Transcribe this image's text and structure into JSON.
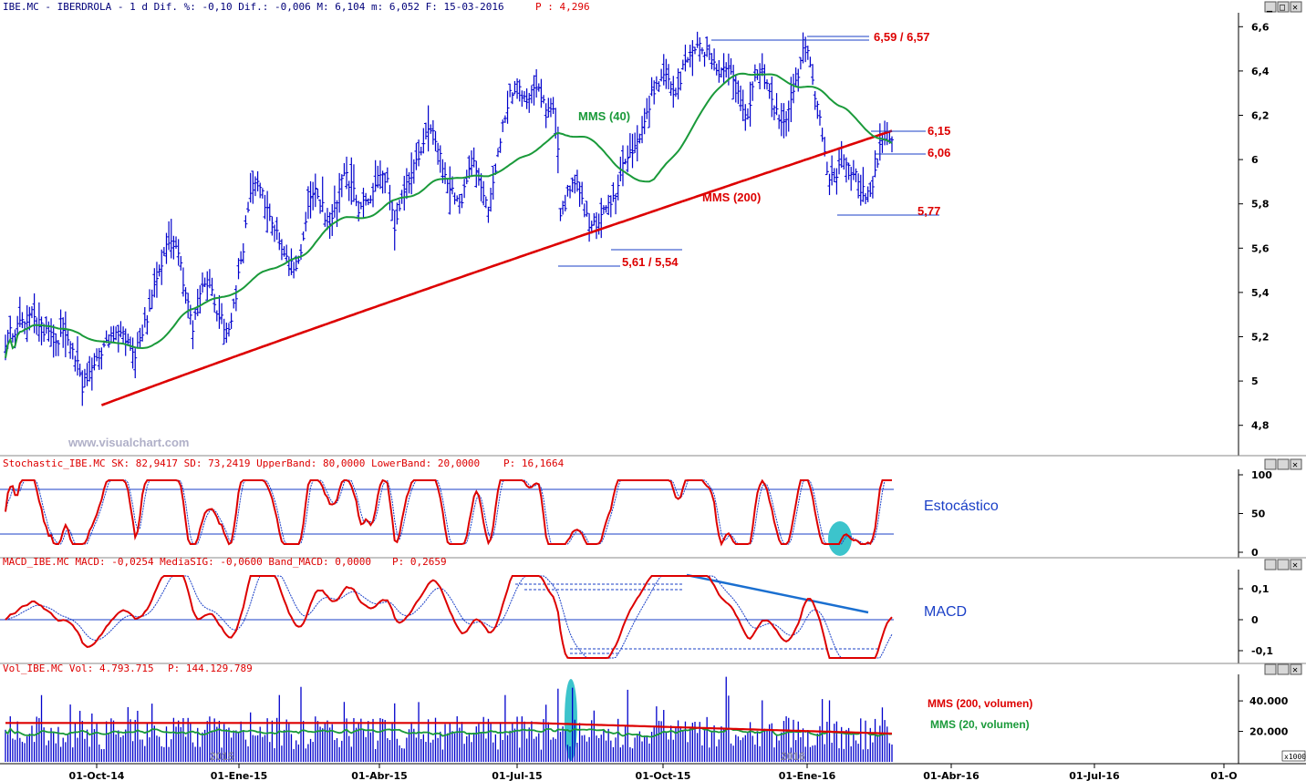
{
  "panels": {
    "price": {
      "header": "IBE.MC - IBERDROLA -  1 d Dif. %: -0,10 Dif.: -0,006 M: 6,104 m: 6,052 F: 15-03-2016",
      "header_p": "P : 4,296",
      "watermark": "www.visualchart.com",
      "annotations": {
        "mms40": "MMS (40)",
        "mms200": "MMS (200)",
        "level_high": "6,59 / 6,57",
        "level_615": "6,15",
        "level_606": "6,06",
        "level_577": "5,77",
        "level_low": "5,61 / 5,54"
      }
    },
    "stochastic": {
      "header": "Stochastic_IBE.MC SK: 82,9417 SD: 73,2419 UpperBand: 80,0000 LowerBand: 20,0000",
      "header_p": "P: 16,1664",
      "label": "Estocástico"
    },
    "macd": {
      "header": "MACD_IBE.MC MACD: -0,0254 MediaSIG: -0,0600 Band_MACD: 0,0000",
      "header_p": "P: 0,2659",
      "label": "MACD"
    },
    "volume": {
      "header": "Vol_IBE.MC Vol: 4.793.715",
      "header_p": "P: 144.129.789",
      "legend_200": "MMS (200, volumen)",
      "legend_20": "MMS (20, volumen)",
      "year_2015": "2015",
      "year_2016": "2016",
      "unit": "x1000"
    }
  },
  "colors": {
    "price_bars": "#0000cc",
    "mms40": "#1a9a3a",
    "mms200": "#dd0000",
    "levels": "#1a3fc7",
    "level_labels": "#dd0000",
    "stoch_k": "#dd0000",
    "stoch_d": "#1a3fc7",
    "highlight": "#3cc4cc",
    "volume_bars": "#0000cc",
    "vol_mms20": "#1a9a3a",
    "vol_mms200": "#dd0000",
    "macd_trend": "#1a6fd0",
    "header_text": "#00007a",
    "header_p": "#dd0000"
  },
  "chart_data": [
    {
      "type": "ohlc",
      "panel": "price",
      "x_ticks": [
        "01-Oct-14",
        "01-Ene-15",
        "01-Abr-15",
        "01-Jul-15",
        "01-Oct-15",
        "01-Ene-16",
        "01-Abr-16",
        "01-Jul-16",
        "01-O"
      ],
      "y_ticks": [
        "4,8",
        "5",
        "5,2",
        "5,4",
        "5,6",
        "5,8",
        "6",
        "6,2",
        "6,4",
        "6,6"
      ],
      "ylim": [
        4.7,
        6.7
      ],
      "close_path": [
        [
          0,
          5.18
        ],
        [
          3,
          5.23
        ],
        [
          6,
          5.25
        ],
        [
          9,
          5.28
        ],
        [
          12,
          5.3
        ],
        [
          15,
          5.24
        ],
        [
          18,
          5.2
        ],
        [
          21,
          5.18
        ],
        [
          24,
          5.2
        ],
        [
          27,
          5.14
        ],
        [
          30,
          5.08
        ],
        [
          32,
          4.97
        ],
        [
          34,
          5.0
        ],
        [
          36,
          5.06
        ],
        [
          39,
          5.12
        ],
        [
          42,
          5.18
        ],
        [
          45,
          5.2
        ],
        [
          48,
          5.24
        ],
        [
          51,
          5.18
        ],
        [
          54,
          5.13
        ],
        [
          57,
          5.22
        ],
        [
          60,
          5.32
        ],
        [
          63,
          5.45
        ],
        [
          66,
          5.58
        ],
        [
          69,
          5.64
        ],
        [
          72,
          5.58
        ],
        [
          75,
          5.4
        ],
        [
          78,
          5.25
        ],
        [
          81,
          5.38
        ],
        [
          84,
          5.45
        ],
        [
          87,
          5.35
        ],
        [
          90,
          5.28
        ],
        [
          93,
          5.22
        ],
        [
          96,
          5.4
        ],
        [
          99,
          5.6
        ],
        [
          102,
          5.86
        ],
        [
          105,
          5.9
        ],
        [
          108,
          5.8
        ],
        [
          111,
          5.7
        ],
        [
          114,
          5.65
        ],
        [
          117,
          5.55
        ],
        [
          120,
          5.5
        ],
        [
          123,
          5.6
        ],
        [
          126,
          5.8
        ],
        [
          129,
          5.88
        ],
        [
          132,
          5.78
        ],
        [
          135,
          5.7
        ],
        [
          138,
          5.82
        ],
        [
          141,
          5.95
        ],
        [
          144,
          5.88
        ],
        [
          147,
          5.78
        ],
        [
          150,
          5.8
        ],
        [
          153,
          5.85
        ],
        [
          156,
          5.95
        ],
        [
          159,
          5.9
        ],
        [
          162,
          5.7
        ],
        [
          165,
          5.8
        ],
        [
          168,
          5.92
        ],
        [
          171,
          5.98
        ],
        [
          174,
          6.08
        ],
        [
          177,
          6.15
        ],
        [
          180,
          6.05
        ],
        [
          183,
          5.95
        ],
        [
          186,
          5.85
        ],
        [
          189,
          5.78
        ],
        [
          192,
          5.9
        ],
        [
          195,
          6.0
        ],
        [
          198,
          5.9
        ],
        [
          201,
          5.8
        ],
        [
          204,
          5.95
        ],
        [
          207,
          6.15
        ],
        [
          210,
          6.3
        ],
        [
          213,
          6.35
        ],
        [
          216,
          6.28
        ],
        [
          219,
          6.3
        ],
        [
          222,
          6.32
        ],
        [
          225,
          6.25
        ],
        [
          228,
          6.2
        ],
        [
          230,
          6.05
        ],
        [
          231,
          5.72
        ],
        [
          234,
          5.85
        ],
        [
          237,
          5.9
        ],
        [
          240,
          5.8
        ],
        [
          243,
          5.72
        ],
        [
          246,
          5.7
        ],
        [
          249,
          5.75
        ],
        [
          252,
          5.8
        ],
        [
          255,
          5.88
        ],
        [
          258,
          6.0
        ],
        [
          261,
          6.05
        ],
        [
          264,
          6.1
        ],
        [
          267,
          6.22
        ],
        [
          270,
          6.32
        ],
        [
          273,
          6.38
        ],
        [
          276,
          6.35
        ],
        [
          279,
          6.3
        ],
        [
          282,
          6.4
        ],
        [
          285,
          6.48
        ],
        [
          288,
          6.53
        ],
        [
          291,
          6.5
        ],
        [
          294,
          6.45
        ],
        [
          297,
          6.4
        ],
        [
          300,
          6.44
        ],
        [
          303,
          6.35
        ],
        [
          306,
          6.25
        ],
        [
          309,
          6.2
        ],
        [
          312,
          6.35
        ],
        [
          315,
          6.4
        ],
        [
          318,
          6.28
        ],
        [
          321,
          6.2
        ],
        [
          324,
          6.15
        ],
        [
          327,
          6.25
        ],
        [
          330,
          6.38
        ],
        [
          332,
          6.55
        ],
        [
          334,
          6.52
        ],
        [
          336,
          6.35
        ],
        [
          339,
          6.2
        ],
        [
          342,
          5.95
        ],
        [
          345,
          5.9
        ],
        [
          348,
          6.05
        ],
        [
          351,
          5.98
        ],
        [
          354,
          5.92
        ],
        [
          357,
          5.85
        ],
        [
          360,
          5.82
        ],
        [
          363,
          6.0
        ],
        [
          366,
          6.12
        ],
        [
          369,
          6.1
        ]
      ]
    },
    {
      "type": "line",
      "panel": "stochastic",
      "y_ticks": [
        "0",
        "50",
        "100"
      ],
      "ylim": [
        0,
        100
      ],
      "bands": [
        20,
        80
      ]
    },
    {
      "type": "line",
      "panel": "macd",
      "y_ticks": [
        "-0,1",
        "0",
        "0,1"
      ],
      "ylim": [
        -0.14,
        0.16
      ]
    },
    {
      "type": "bar",
      "panel": "volume",
      "y_ticks": [
        "20.000",
        "40.000"
      ],
      "ylim": [
        0,
        55000
      ]
    }
  ]
}
